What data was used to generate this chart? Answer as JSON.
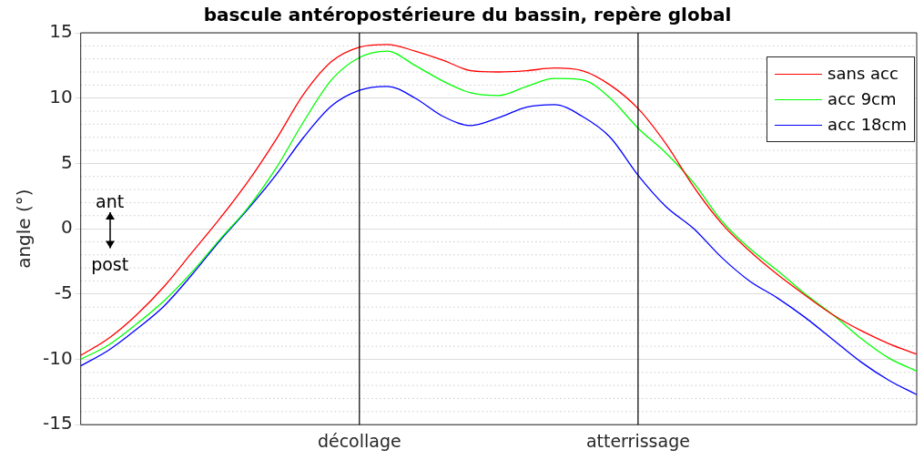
{
  "chart_data": {
    "type": "line",
    "title": "bascule antéropostérieure du bassin, repère global",
    "ylabel": "angle (°)",
    "categories": [
      null,
      null,
      null,
      null,
      null,
      null,
      null,
      null,
      null,
      null,
      "décollage",
      null,
      null,
      null,
      null,
      null,
      null,
      null,
      null,
      null,
      "atterrissage",
      null,
      null,
      null,
      null,
      null,
      null,
      null,
      null,
      null,
      null
    ],
    "series": [
      {
        "name": "sans acc",
        "color": "#ff0000",
        "values": [
          -9.7,
          -8.4,
          -6.6,
          -4.4,
          -1.8,
          0.8,
          3.6,
          6.8,
          10.3,
          12.8,
          13.9,
          14.1,
          13.6,
          12.9,
          12.1,
          12.0,
          12.1,
          12.3,
          12.1,
          11.0,
          9.2,
          6.5,
          3.2,
          0.4,
          -1.7,
          -3.5,
          -5.1,
          -6.6,
          -7.8,
          -8.8,
          -9.6
        ]
      },
      {
        "name": "acc 9cm",
        "color": "#00ff00",
        "values": [
          -10.0,
          -8.9,
          -7.3,
          -5.5,
          -3.3,
          -0.8,
          1.6,
          4.6,
          8.2,
          11.4,
          13.1,
          13.6,
          12.5,
          11.3,
          10.4,
          10.2,
          10.9,
          11.5,
          11.4,
          10.0,
          7.7,
          5.8,
          3.5,
          0.6,
          -1.5,
          -3.2,
          -5.0,
          -6.6,
          -8.4,
          -9.9,
          -10.9
        ]
      },
      {
        "name": "acc 18cm",
        "color": "#0000ff",
        "values": [
          -10.5,
          -9.3,
          -7.7,
          -5.9,
          -3.5,
          -0.9,
          1.5,
          4.1,
          7.0,
          9.4,
          10.6,
          10.9,
          10.0,
          8.6,
          7.9,
          8.5,
          9.3,
          9.5,
          8.6,
          7.0,
          4.1,
          1.7,
          0.0,
          -2.2,
          -4.0,
          -5.3,
          -6.8,
          -8.5,
          -10.2,
          -11.6,
          -12.7
        ]
      }
    ],
    "ylim": [
      -15,
      15
    ],
    "yticks": [
      -15,
      -10,
      -5,
      0,
      5,
      10,
      15
    ],
    "grid": "y",
    "legend": "top right",
    "marker": "none",
    "line_style": "solid",
    "ref_lines": [
      {
        "axis": "x",
        "value": "décollage",
        "color": "#000000"
      },
      {
        "axis": "x",
        "value": "atterrissage",
        "color": "#000000"
      }
    ],
    "annotations": [
      "ant",
      "post"
    ]
  }
}
